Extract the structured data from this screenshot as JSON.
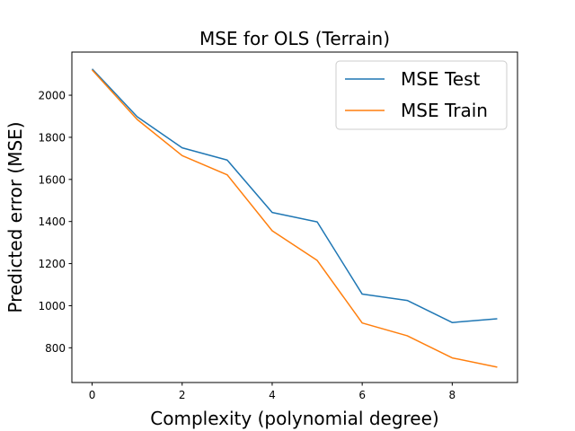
{
  "chart_data": {
    "type": "line",
    "title": "MSE for OLS (Terrain)",
    "xlabel": "Complexity (polynomial degree)",
    "ylabel": "Predicted error (MSE)",
    "x": [
      0,
      1,
      2,
      3,
      4,
      5,
      6,
      7,
      8,
      9
    ],
    "xlim": [
      -0.45,
      9.45
    ],
    "ylim": [
      635,
      2205
    ],
    "xticks": [
      0,
      2,
      4,
      6,
      8
    ],
    "yticks": [
      800,
      1000,
      1200,
      1400,
      1600,
      1800,
      2000
    ],
    "grid": false,
    "legend_position": "upper right",
    "series": [
      {
        "name": "MSE Test",
        "color": "#1f77b4",
        "values": [
          2125,
          1898,
          1750,
          1692,
          1443,
          1398,
          1055,
          1025,
          920,
          938
        ]
      },
      {
        "name": "MSE Train",
        "color": "#ff7f0e",
        "values": [
          2120,
          1885,
          1713,
          1622,
          1356,
          1215,
          918,
          857,
          752,
          708
        ]
      }
    ]
  }
}
